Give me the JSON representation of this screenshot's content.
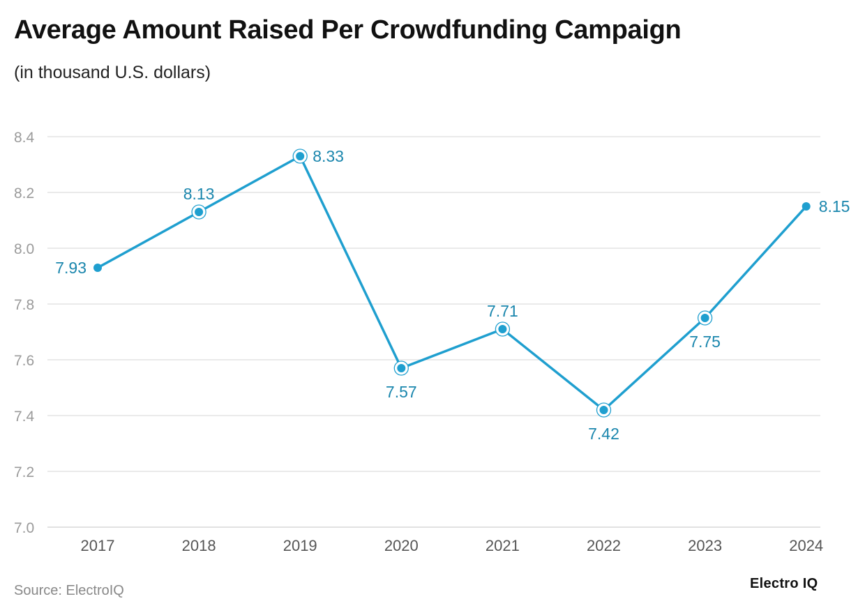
{
  "title": "Average Amount Raised Per Crowdfunding Campaign",
  "subtitle": "(in thousand U.S. dollars)",
  "source": "Source: ElectroIQ",
  "brand": "Electro IQ",
  "colors": {
    "line": "#1f9fcf",
    "label": "#1a86ad",
    "grid": "#dedede"
  },
  "chart_data": {
    "type": "line",
    "title": "Average Amount Raised Per Crowdfunding Campaign",
    "subtitle": "(in thousand U.S. dollars)",
    "xlabel": "",
    "ylabel": "",
    "categories": [
      "2017",
      "2018",
      "2019",
      "2020",
      "2021",
      "2022",
      "2023",
      "2024"
    ],
    "values": [
      7.93,
      8.13,
      8.33,
      7.57,
      7.71,
      7.42,
      7.75,
      8.15
    ],
    "data_labels": [
      "7.93",
      "8.13",
      "8.33",
      "7.57",
      "7.71",
      "7.42",
      "7.75",
      "8.15"
    ],
    "ylim": [
      7.0,
      8.4
    ],
    "yticks": [
      "7.0",
      "7.2",
      "7.4",
      "7.6",
      "7.8",
      "8.0",
      "8.2",
      "8.4"
    ],
    "grid": true,
    "legend": "none"
  }
}
